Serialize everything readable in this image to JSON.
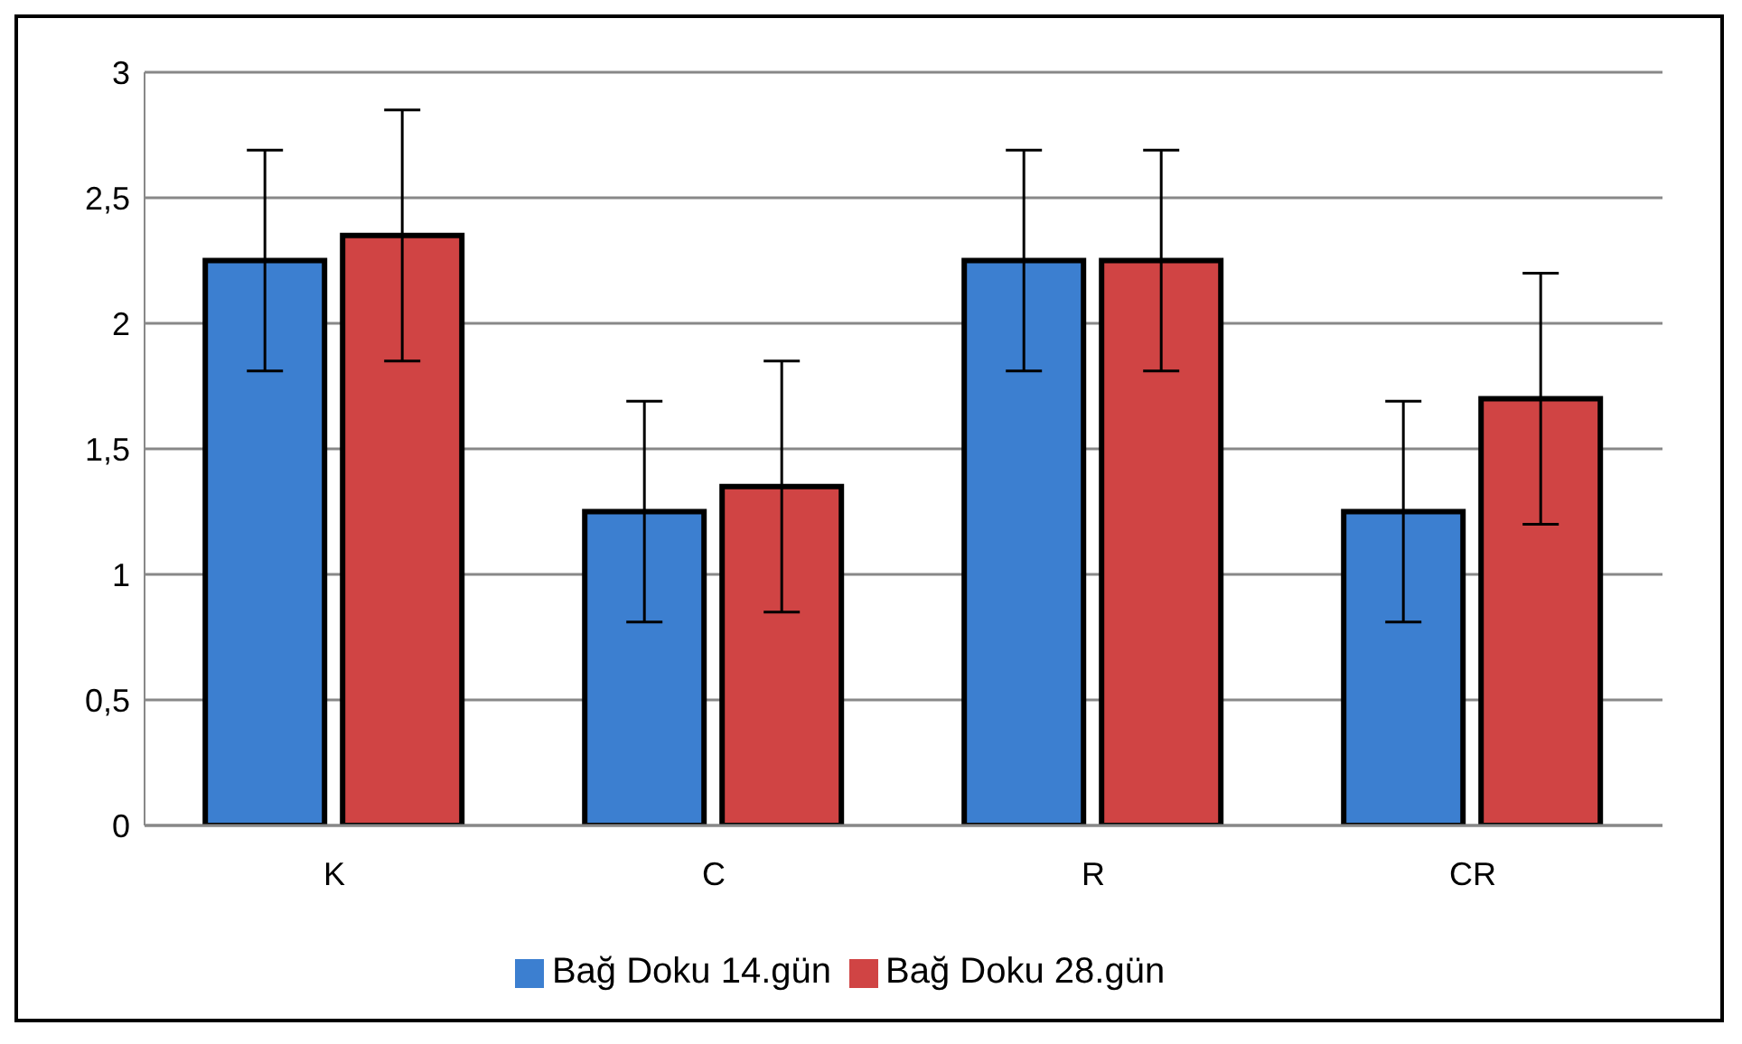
{
  "chart_data": {
    "type": "bar",
    "categories": [
      "K",
      "C",
      "R",
      "CR"
    ],
    "series": [
      {
        "name": "Bağ Doku 14.gün",
        "color": "#3c7fd0",
        "values": [
          2.25,
          1.25,
          2.25,
          1.25
        ],
        "errors": [
          0.44,
          0.44,
          0.44,
          0.44
        ]
      },
      {
        "name": "Bağ Doku 28.gün",
        "color": "#d04444",
        "values": [
          2.35,
          1.35,
          2.25,
          1.7
        ],
        "errors": [
          0.5,
          0.5,
          0.44,
          0.5
        ]
      }
    ],
    "ylim": [
      0,
      3
    ],
    "yticks": [
      0,
      {
        "value": 0.5,
        "label": "0,5"
      },
      1,
      {
        "value": 1.5,
        "label": "1,5"
      },
      2,
      {
        "value": 2.5,
        "label": "2,5"
      },
      3
    ],
    "grid": "y",
    "legend": "bottom"
  }
}
